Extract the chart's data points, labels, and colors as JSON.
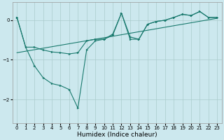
{
  "title": "",
  "xlabel": "Humidex (Indice chaleur)",
  "background_color": "#cce8ee",
  "grid_color": "#aacccc",
  "line_color": "#1a7a6e",
  "xlim": [
    -0.5,
    23.5
  ],
  "ylim": [
    -2.6,
    0.45
  ],
  "yticks": [
    0,
    -1,
    -2
  ],
  "xticks": [
    0,
    1,
    2,
    3,
    4,
    5,
    6,
    7,
    8,
    9,
    10,
    11,
    12,
    13,
    14,
    15,
    16,
    17,
    18,
    19,
    20,
    21,
    22,
    23
  ],
  "regline_x": [
    0,
    23
  ],
  "regline_y": [
    -0.82,
    0.05
  ],
  "upper_x": [
    0,
    1,
    2,
    3,
    4,
    5,
    6,
    7,
    8,
    9,
    10,
    11,
    12,
    13,
    14,
    15,
    16,
    17,
    18,
    19,
    20,
    21,
    22,
    23
  ],
  "upper_y": [
    0.07,
    -0.68,
    -0.68,
    -0.75,
    -0.8,
    -0.82,
    -0.85,
    -0.82,
    -0.52,
    -0.48,
    -0.48,
    -0.38,
    0.18,
    -0.42,
    -0.48,
    -0.1,
    -0.03,
    0.0,
    0.07,
    0.15,
    0.12,
    0.22,
    0.07,
    0.07
  ],
  "lower_x": [
    0,
    1,
    2,
    3,
    4,
    5,
    6,
    7,
    8,
    9,
    10,
    11,
    12,
    13,
    14,
    15,
    16,
    17,
    18,
    19,
    20,
    21,
    22,
    23
  ],
  "lower_y": [
    0.07,
    -0.68,
    -1.15,
    -1.45,
    -1.6,
    -1.65,
    -1.75,
    -2.22,
    -0.75,
    -0.52,
    -0.48,
    -0.35,
    0.18,
    -0.48,
    -0.48,
    -0.1,
    -0.03,
    0.0,
    0.07,
    0.15,
    0.12,
    0.22,
    0.07,
    0.07
  ],
  "tick_labelsize": 5,
  "xlabel_fontsize": 6.5,
  "linewidth": 0.8,
  "markersize": 2.0
}
